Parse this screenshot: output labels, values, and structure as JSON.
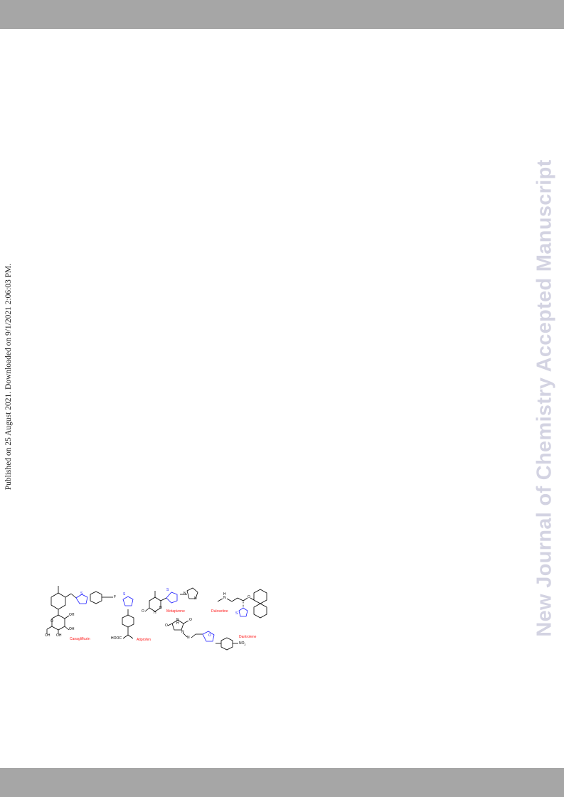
{
  "page": {
    "published_line": "Published on 25 August 2021. Downloaded on 9/1/2021 2:06:03 PM.",
    "watermark": "New Journal of Chemistry Accepted Manuscript"
  },
  "figure": {
    "drugs": [
      {
        "name": "Canagliflozin"
      },
      {
        "name": "Atiprofen"
      },
      {
        "name": "Motapizone"
      },
      {
        "name": "Duloxetine"
      },
      {
        "name": "Dantrolene"
      }
    ],
    "atom_labels": {
      "s1": "S",
      "f": "F",
      "oh1": "OH",
      "oh2": "OH",
      "oh3": "OH",
      "oh4": "OH",
      "o_ring": "O",
      "s2": "S",
      "hooc": "HOOC",
      "s3": "S",
      "n_im": "N",
      "n_pyr": "N",
      "n_pyr2": "N",
      "o_mota": "O",
      "nh_mota": "H",
      "nh_dulox": "H",
      "n_dulox": "N",
      "o_dulox": "O",
      "s_dulox": "S",
      "o_dant1": "O",
      "o_dant2": "O",
      "n_dant1": "N",
      "nh_dant": "H",
      "n_dant2": "N",
      "n_dant3": "N",
      "o_furan": "O",
      "no2": "NO"
    }
  },
  "colors": {
    "top_bar": "#a6a6a6",
    "bottom_bar": "#a6a6a6",
    "watermark": "#d3d3e2",
    "drug_label": "#ff1a1a",
    "heterocycle": "#1a1aff",
    "bond": "#000000"
  }
}
